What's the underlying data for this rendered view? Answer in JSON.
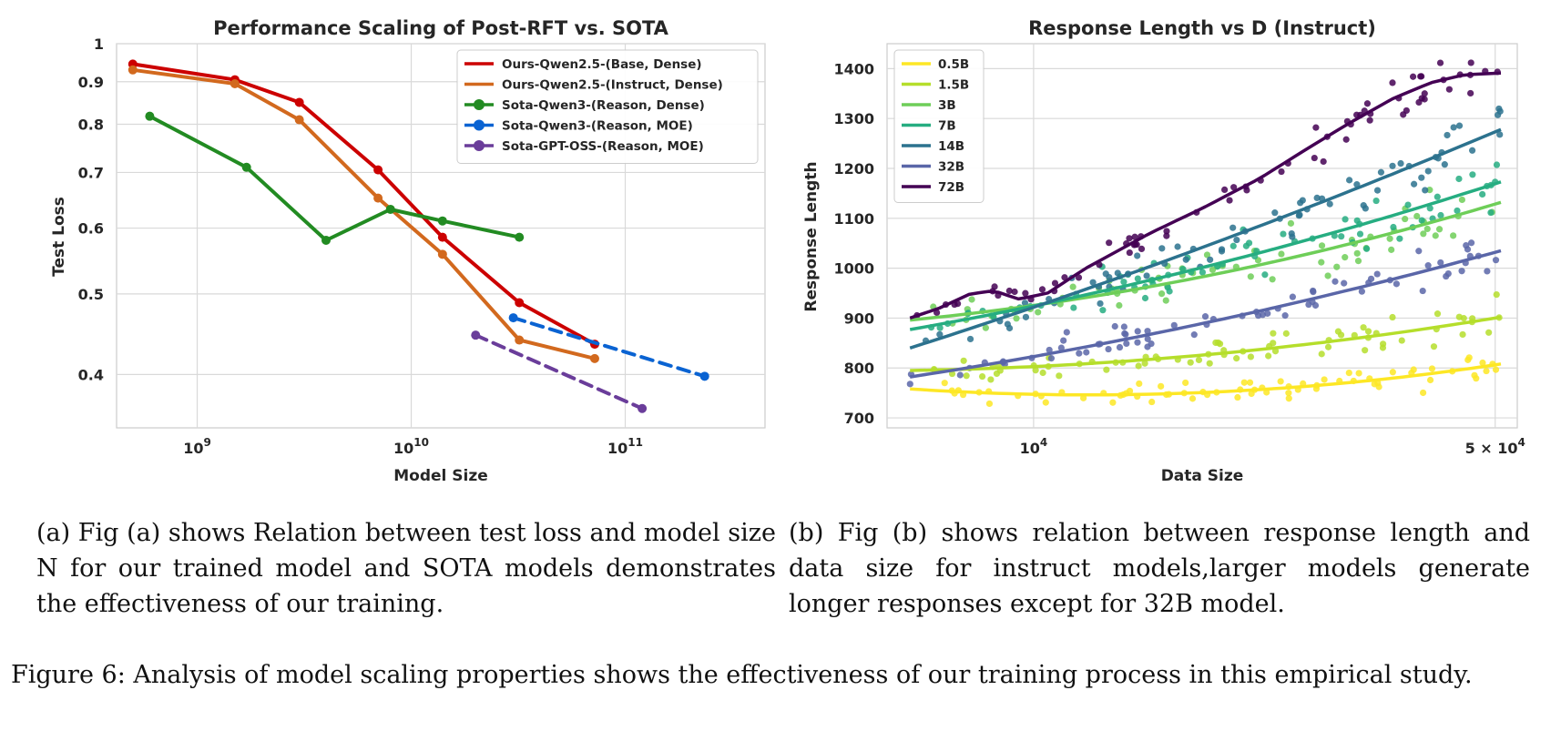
{
  "chart_data": [
    {
      "type": "line",
      "title": "Performance Scaling of Post-RFT vs. SOTA",
      "xlabel": "Model Size",
      "ylabel": "Test Loss",
      "xscale": "log",
      "yscale": "log",
      "xlim": [
        420000000,
        450000000000
      ],
      "ylim": [
        0.345,
        1.0
      ],
      "xticks": [
        {
          "value": 1000000000,
          "base": "10",
          "exp": "9"
        },
        {
          "value": 10000000000,
          "base": "10",
          "exp": "10"
        },
        {
          "value": 100000000000,
          "base": "10",
          "exp": "11"
        }
      ],
      "yticks": [
        {
          "value": 1.0,
          "label": "1"
        },
        {
          "value": 0.9,
          "label": "0.9"
        },
        {
          "value": 0.8,
          "label": "0.8"
        },
        {
          "value": 0.7,
          "label": "0.7"
        },
        {
          "value": 0.6,
          "label": "0.6"
        },
        {
          "value": 0.5,
          "label": "0.5"
        },
        {
          "value": 0.4,
          "label": "0.4"
        }
      ],
      "legend_position": "top-right",
      "series": [
        {
          "name": "Ours-Qwen2.5-(Base, Dense)",
          "color": "#cc0000",
          "dashed": false,
          "x": [
            500000000,
            1500000000,
            3000000000,
            7000000000,
            14000000000,
            32000000000,
            72000000000
          ],
          "y": [
            0.945,
            0.905,
            0.85,
            0.705,
            0.585,
            0.488,
            0.435
          ]
        },
        {
          "name": "Ours-Qwen2.5-(Instruct, Dense)",
          "color": "#d2691e",
          "dashed": false,
          "x": [
            500000000,
            1500000000,
            3000000000,
            7000000000,
            14000000000,
            32000000000,
            72000000000
          ],
          "y": [
            0.93,
            0.895,
            0.81,
            0.652,
            0.558,
            0.44,
            0.418
          ]
        },
        {
          "name": "Sota-Qwen3-(Reason, Dense)",
          "color": "#228b22",
          "dashed": false,
          "x": [
            600000000,
            1700000000,
            4000000000,
            8000000000,
            14000000000,
            32000000000
          ],
          "y": [
            0.818,
            0.71,
            0.58,
            0.632,
            0.612,
            0.585
          ]
        },
        {
          "name": "Sota-Qwen3-(Reason, MOE)",
          "color": "#0a63d2",
          "dashed": true,
          "x": [
            30000000000,
            235000000000
          ],
          "y": [
            0.468,
            0.398
          ]
        },
        {
          "name": "Sota-GPT-OSS-(Reason, MOE)",
          "color": "#6a3d9a",
          "dashed": true,
          "x": [
            20000000000,
            120000000000
          ],
          "y": [
            0.446,
            0.364
          ]
        }
      ]
    },
    {
      "type": "scatter",
      "title": "Response Length vs D (Instruct)",
      "xlabel": "Data Size",
      "ylabel": "Response Length",
      "xscale": "log",
      "xlim": [
        6000,
        54000
      ],
      "ylim": [
        680,
        1450
      ],
      "xticks": [
        {
          "value": 10000,
          "base": "10",
          "exp": "4",
          "prefix": ""
        },
        {
          "value": 50000,
          "base": "10",
          "exp": "4",
          "prefix": "5 × "
        }
      ],
      "yticks": [
        700,
        800,
        900,
        1000,
        1100,
        1200,
        1300,
        1400
      ],
      "legend_position": "top-left",
      "x_range_points": [
        6500,
        51000
      ],
      "series": [
        {
          "name": "0.5B",
          "color": "#fde725",
          "start": 758,
          "end": 808,
          "curve": -32,
          "noise": 16,
          "seed": 11
        },
        {
          "name": "1.5B",
          "color": "#b5de2b",
          "start": 795,
          "end": 902,
          "curve": -22,
          "noise": 22,
          "seed": 23
        },
        {
          "name": "3B",
          "color": "#6ece58",
          "start": 896,
          "end": 1132,
          "curve": -30,
          "noise": 32,
          "seed": 37
        },
        {
          "name": "7B",
          "color": "#26ad81",
          "start": 877,
          "end": 1173,
          "curve": -22,
          "noise": 30,
          "seed": 41
        },
        {
          "name": "14B",
          "color": "#2c728e",
          "start": 840,
          "end": 1278,
          "curve": -15,
          "noise": 32,
          "seed": 53
        },
        {
          "name": "32B",
          "color": "#5a66a8",
          "start": 782,
          "end": 1035,
          "curve": -18,
          "noise": 24,
          "seed": 67
        },
        {
          "name": "72B",
          "color": "#440154",
          "start": 900,
          "end": 1390,
          "curve": 0,
          "noise": 22,
          "seed": 79,
          "trend": [
            [
              6500,
              900
            ],
            [
              7200,
              920
            ],
            [
              8000,
              948
            ],
            [
              8700,
              955
            ],
            [
              9500,
              938
            ],
            [
              10500,
              950
            ],
            [
              12000,
              1000
            ],
            [
              15000,
              1070
            ],
            [
              18000,
              1120
            ],
            [
              22000,
              1180
            ],
            [
              26000,
              1240
            ],
            [
              30000,
              1290
            ],
            [
              35000,
              1340
            ],
            [
              40000,
              1372
            ],
            [
              45000,
              1388
            ],
            [
              51000,
              1391
            ]
          ]
        }
      ]
    }
  ],
  "captions": {
    "a": "(a) Fig (a) shows Relation between test loss and model size N for our trained model and SOTA models demonstrates the effectiveness of our training.",
    "b": "(b) Fig (b) shows relation between response length and data size for instruct models,larger models generate longer responses except for 32B model.",
    "figure": "Figure 6: Analysis of model scaling properties shows the effectiveness of our training process in this empirical study."
  }
}
